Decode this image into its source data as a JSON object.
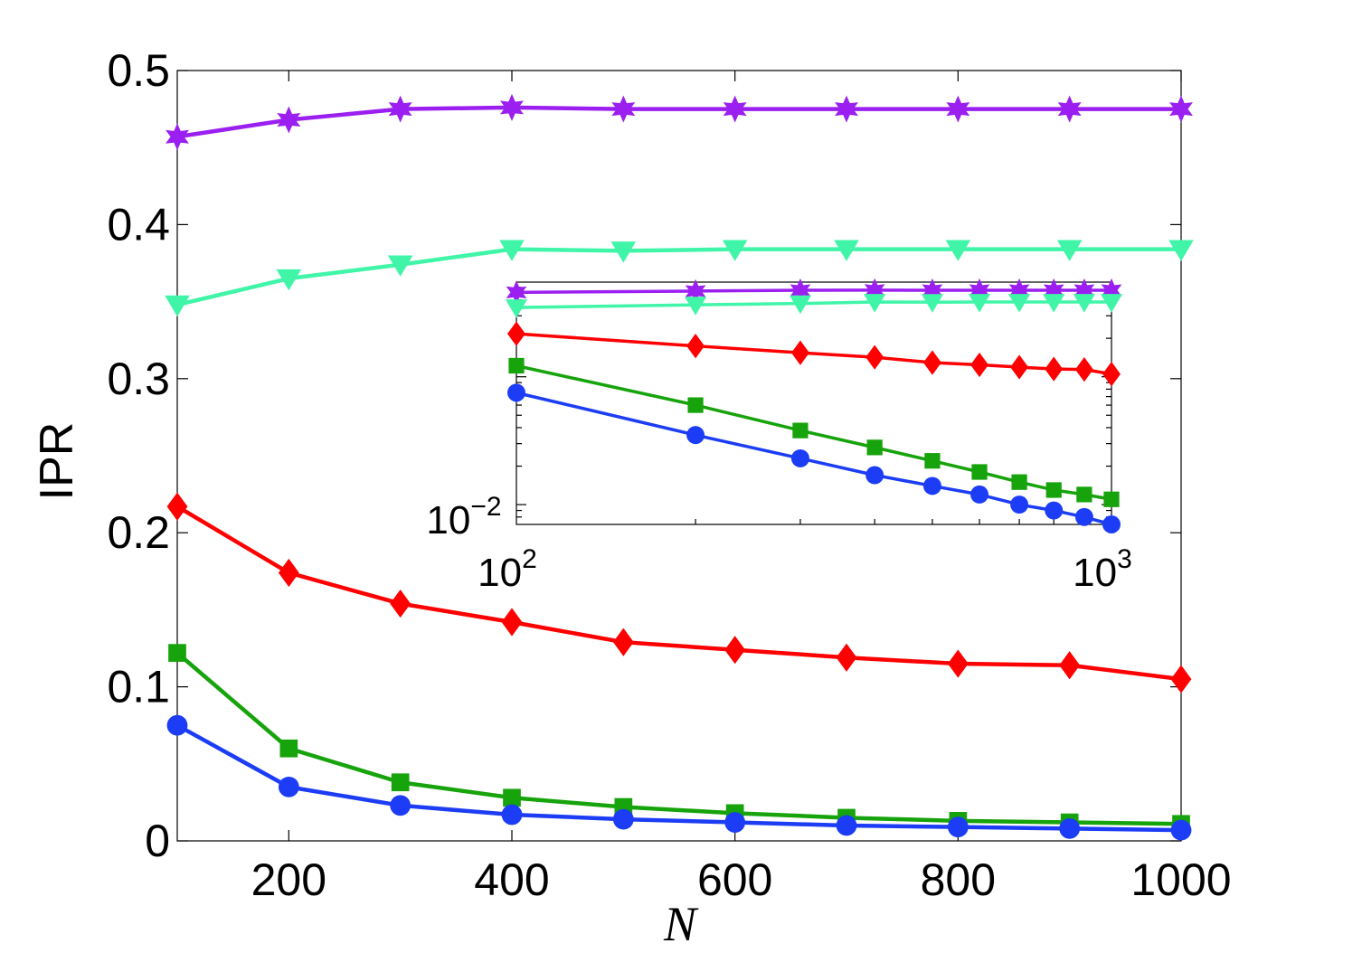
{
  "chart_data": [
    {
      "type": "line",
      "name": "main",
      "xlabel": "N",
      "ylabel": "IPR",
      "xlim": [
        100,
        1000
      ],
      "ylim": [
        0,
        0.5
      ],
      "x_ticks": [
        200,
        400,
        600,
        800,
        1000
      ],
      "x_tick_labels": [
        "200",
        "400",
        "600",
        "800",
        "1000"
      ],
      "y_ticks": [
        0,
        0.1,
        0.2,
        0.3,
        0.4,
        0.5
      ],
      "y_tick_labels": [
        "0",
        "0.1",
        "0.2",
        "0.3",
        "0.4",
        "0.5"
      ],
      "x": [
        100,
        200,
        300,
        400,
        500,
        600,
        700,
        800,
        900,
        1000
      ],
      "series": [
        {
          "name": "star",
          "marker": "star",
          "color": "#9B1FF0",
          "values": [
            0.457,
            0.468,
            0.475,
            0.476,
            0.475,
            0.475,
            0.475,
            0.475,
            0.475,
            0.475
          ]
        },
        {
          "name": "triangle",
          "marker": "triangle-down",
          "color": "#40F5A8",
          "values": [
            0.348,
            0.365,
            0.374,
            0.384,
            0.383,
            0.384,
            0.384,
            0.384,
            0.384,
            0.384
          ]
        },
        {
          "name": "diamond",
          "marker": "diamond",
          "color": "#FF0000",
          "values": [
            0.217,
            0.174,
            0.154,
            0.142,
            0.129,
            0.124,
            0.119,
            0.115,
            0.114,
            0.105
          ]
        },
        {
          "name": "square",
          "marker": "square",
          "color": "#17A30B",
          "values": [
            0.122,
            0.06,
            0.038,
            0.028,
            0.022,
            0.018,
            0.015,
            0.013,
            0.012,
            0.011
          ]
        },
        {
          "name": "circle",
          "marker": "circle",
          "color": "#1C3DF5",
          "values": [
            0.075,
            0.035,
            0.023,
            0.017,
            0.014,
            0.012,
            0.01,
            0.009,
            0.008,
            0.007
          ]
        }
      ]
    },
    {
      "type": "line",
      "name": "inset",
      "xscale": "log",
      "yscale": "log",
      "xlim": [
        100,
        1000
      ],
      "ylim": [
        0.007,
        0.55
      ],
      "x_tick_base": "10",
      "x_tick_exponents": [
        "2",
        "3"
      ],
      "y_tick_base": "10",
      "y_tick_exponents": [
        "−2"
      ],
      "x": [
        100,
        200,
        300,
        400,
        500,
        600,
        700,
        800,
        900,
        1000
      ],
      "series": [
        {
          "name": "star",
          "marker": "star",
          "color": "#9B1FF0",
          "values": [
            0.457,
            0.468,
            0.475,
            0.476,
            0.475,
            0.475,
            0.475,
            0.475,
            0.475,
            0.475
          ]
        },
        {
          "name": "triangle",
          "marker": "triangle-down",
          "color": "#40F5A8",
          "values": [
            0.348,
            0.365,
            0.374,
            0.384,
            0.383,
            0.384,
            0.384,
            0.384,
            0.384,
            0.384
          ]
        },
        {
          "name": "diamond",
          "marker": "diamond",
          "color": "#FF0000",
          "values": [
            0.217,
            0.174,
            0.154,
            0.142,
            0.129,
            0.124,
            0.119,
            0.115,
            0.114,
            0.105
          ]
        },
        {
          "name": "square",
          "marker": "square",
          "color": "#17A30B",
          "values": [
            0.122,
            0.06,
            0.038,
            0.028,
            0.022,
            0.018,
            0.015,
            0.013,
            0.012,
            0.011
          ]
        },
        {
          "name": "circle",
          "marker": "circle",
          "color": "#1C3DF5",
          "values": [
            0.075,
            0.035,
            0.023,
            0.017,
            0.014,
            0.012,
            0.01,
            0.009,
            0.008,
            0.007
          ]
        }
      ]
    }
  ]
}
